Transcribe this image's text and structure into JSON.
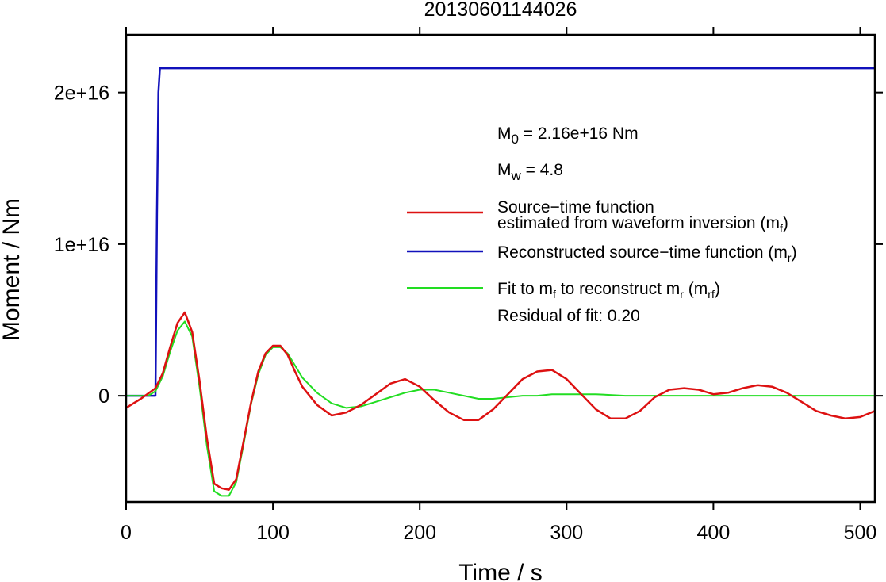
{
  "chart_data": {
    "type": "line",
    "title": "20130601144026",
    "xlabel": "Time / s",
    "ylabel": "Moment / Nm",
    "xlim": [
      0,
      510
    ],
    "ylim": [
      -7000000000000000.0,
      2.38e+16
    ],
    "x_ticks": [
      {
        "value": 0,
        "label": "0"
      },
      {
        "value": 100,
        "label": "100"
      },
      {
        "value": 200,
        "label": "200"
      },
      {
        "value": 300,
        "label": "300"
      },
      {
        "value": 400,
        "label": "400"
      },
      {
        "value": 500,
        "label": "500"
      }
    ],
    "y_ticks": [
      {
        "value": 0,
        "label": "0"
      },
      {
        "value": 1e+16,
        "label": "1e+16"
      },
      {
        "value": 2e+16,
        "label": "2e+16"
      }
    ],
    "grid": false,
    "legend_position": "right",
    "annotations": {
      "m0": {
        "main": "M",
        "sub": "0",
        "rest": " = 2.16e+16 Nm"
      },
      "mw": {
        "main": "M",
        "sub": "w",
        "rest": " = 4.8"
      },
      "residual": "Residual of fit: 0.20"
    },
    "legend": [
      {
        "series": "mf",
        "color": "#dd1111",
        "lines": [
          "Source−time function",
          "estimated from waveform inversion (m",
          "f",
          ")"
        ]
      },
      {
        "series": "mr",
        "color": "#1111bb",
        "lines": [
          "Reconstructed source−time function (m",
          "r",
          ")"
        ]
      },
      {
        "series": "mrf",
        "color": "#22dd22",
        "parts": [
          "Fit to m",
          "f",
          " to reconstruct m",
          "r",
          " (m",
          "rf",
          ")"
        ]
      }
    ],
    "series": [
      {
        "id": "mf",
        "color": "#dd1111",
        "x": [
          0,
          10,
          20,
          25,
          30,
          35,
          40,
          45,
          50,
          55,
          60,
          65,
          70,
          75,
          80,
          85,
          90,
          95,
          100,
          105,
          110,
          115,
          120,
          130,
          140,
          150,
          160,
          170,
          180,
          190,
          200,
          210,
          220,
          230,
          240,
          250,
          260,
          270,
          280,
          290,
          300,
          310,
          320,
          330,
          340,
          350,
          360,
          370,
          380,
          390,
          400,
          410,
          420,
          430,
          440,
          450,
          460,
          470,
          480,
          490,
          500,
          510
        ],
        "y": [
          -800000000000000.0,
          -200000000000000.0,
          500000000000000.0,
          1500000000000000.0,
          3200000000000000.0,
          4800000000000000.0,
          5500000000000000.0,
          4200000000000000.0,
          1000000000000000.0,
          -2800000000000000.0,
          -5800000000000000.0,
          -6100000000000000.0,
          -6200000000000000.0,
          -5500000000000000.0,
          -3000000000000000.0,
          -500000000000000.0,
          1600000000000000.0,
          2800000000000000.0,
          3300000000000000.0,
          3300000000000000.0,
          2700000000000000.0,
          1600000000000000.0,
          600000000000000.0,
          -600000000000000.0,
          -1300000000000000.0,
          -1100000000000000.0,
          -600000000000000.0,
          100000000000000.0,
          800000000000000.0,
          1100000000000000.0,
          600000000000000.0,
          -300000000000000.0,
          -1100000000000000.0,
          -1600000000000000.0,
          -1600000000000000.0,
          -900000000000000.0,
          100000000000000.0,
          1100000000000000.0,
          1600000000000000.0,
          1700000000000000.0,
          1100000000000000.0,
          100000000000000.0,
          -900000000000000.0,
          -1500000000000000.0,
          -1500000000000000.0,
          -1000000000000000.0,
          -100000000000000.0,
          400000000000000.0,
          500000000000000.0,
          400000000000000.0,
          100000000000000.0,
          200000000000000.0,
          500000000000000.0,
          700000000000000.0,
          600000000000000.0,
          200000000000000.0,
          -400000000000000.0,
          -1000000000000000.0,
          -1300000000000000.0,
          -1500000000000000.0,
          -1400000000000000.0,
          -1000000000000000.0
        ]
      },
      {
        "id": "mr",
        "color": "#1111bb",
        "x": [
          0,
          20,
          21,
          22,
          23,
          510
        ],
        "y": [
          0,
          0,
          1.2e+16,
          2e+16,
          2.16e+16,
          2.16e+16
        ]
      },
      {
        "id": "mrf",
        "color": "#22dd22",
        "x": [
          0,
          15,
          20,
          25,
          30,
          35,
          40,
          45,
          50,
          55,
          60,
          65,
          70,
          75,
          80,
          85,
          90,
          95,
          100,
          105,
          110,
          115,
          120,
          130,
          140,
          150,
          160,
          170,
          180,
          190,
          200,
          210,
          220,
          230,
          240,
          250,
          260,
          270,
          280,
          290,
          300,
          320,
          340,
          360,
          380,
          400,
          420,
          440,
          460,
          480,
          500,
          510
        ],
        "y": [
          0,
          0,
          300000000000000.0,
          1300000000000000.0,
          2900000000000000.0,
          4300000000000000.0,
          4900000000000000.0,
          3900000000000000.0,
          600000000000000.0,
          -3300000000000000.0,
          -6300000000000000.0,
          -6600000000000000.0,
          -6600000000000000.0,
          -5700000000000000.0,
          -3200000000000000.0,
          -600000000000000.0,
          1400000000000000.0,
          2700000000000000.0,
          3200000000000000.0,
          3200000000000000.0,
          2800000000000000.0,
          2000000000000000.0,
          1200000000000000.0,
          200000000000000.0,
          -500000000000000.0,
          -800000000000000.0,
          -700000000000000.0,
          -400000000000000.0,
          -100000000000000.0,
          200000000000000.0,
          400000000000000.0,
          400000000000000.0,
          200000000000000.0,
          0,
          -200000000000000.0,
          -200000000000000.0,
          -100000000000000.0,
          0,
          0,
          100000000000000.0,
          100000000000000.0,
          100000000000000.0,
          0,
          0,
          0,
          0,
          0,
          0,
          0,
          0,
          0,
          0
        ]
      }
    ]
  }
}
